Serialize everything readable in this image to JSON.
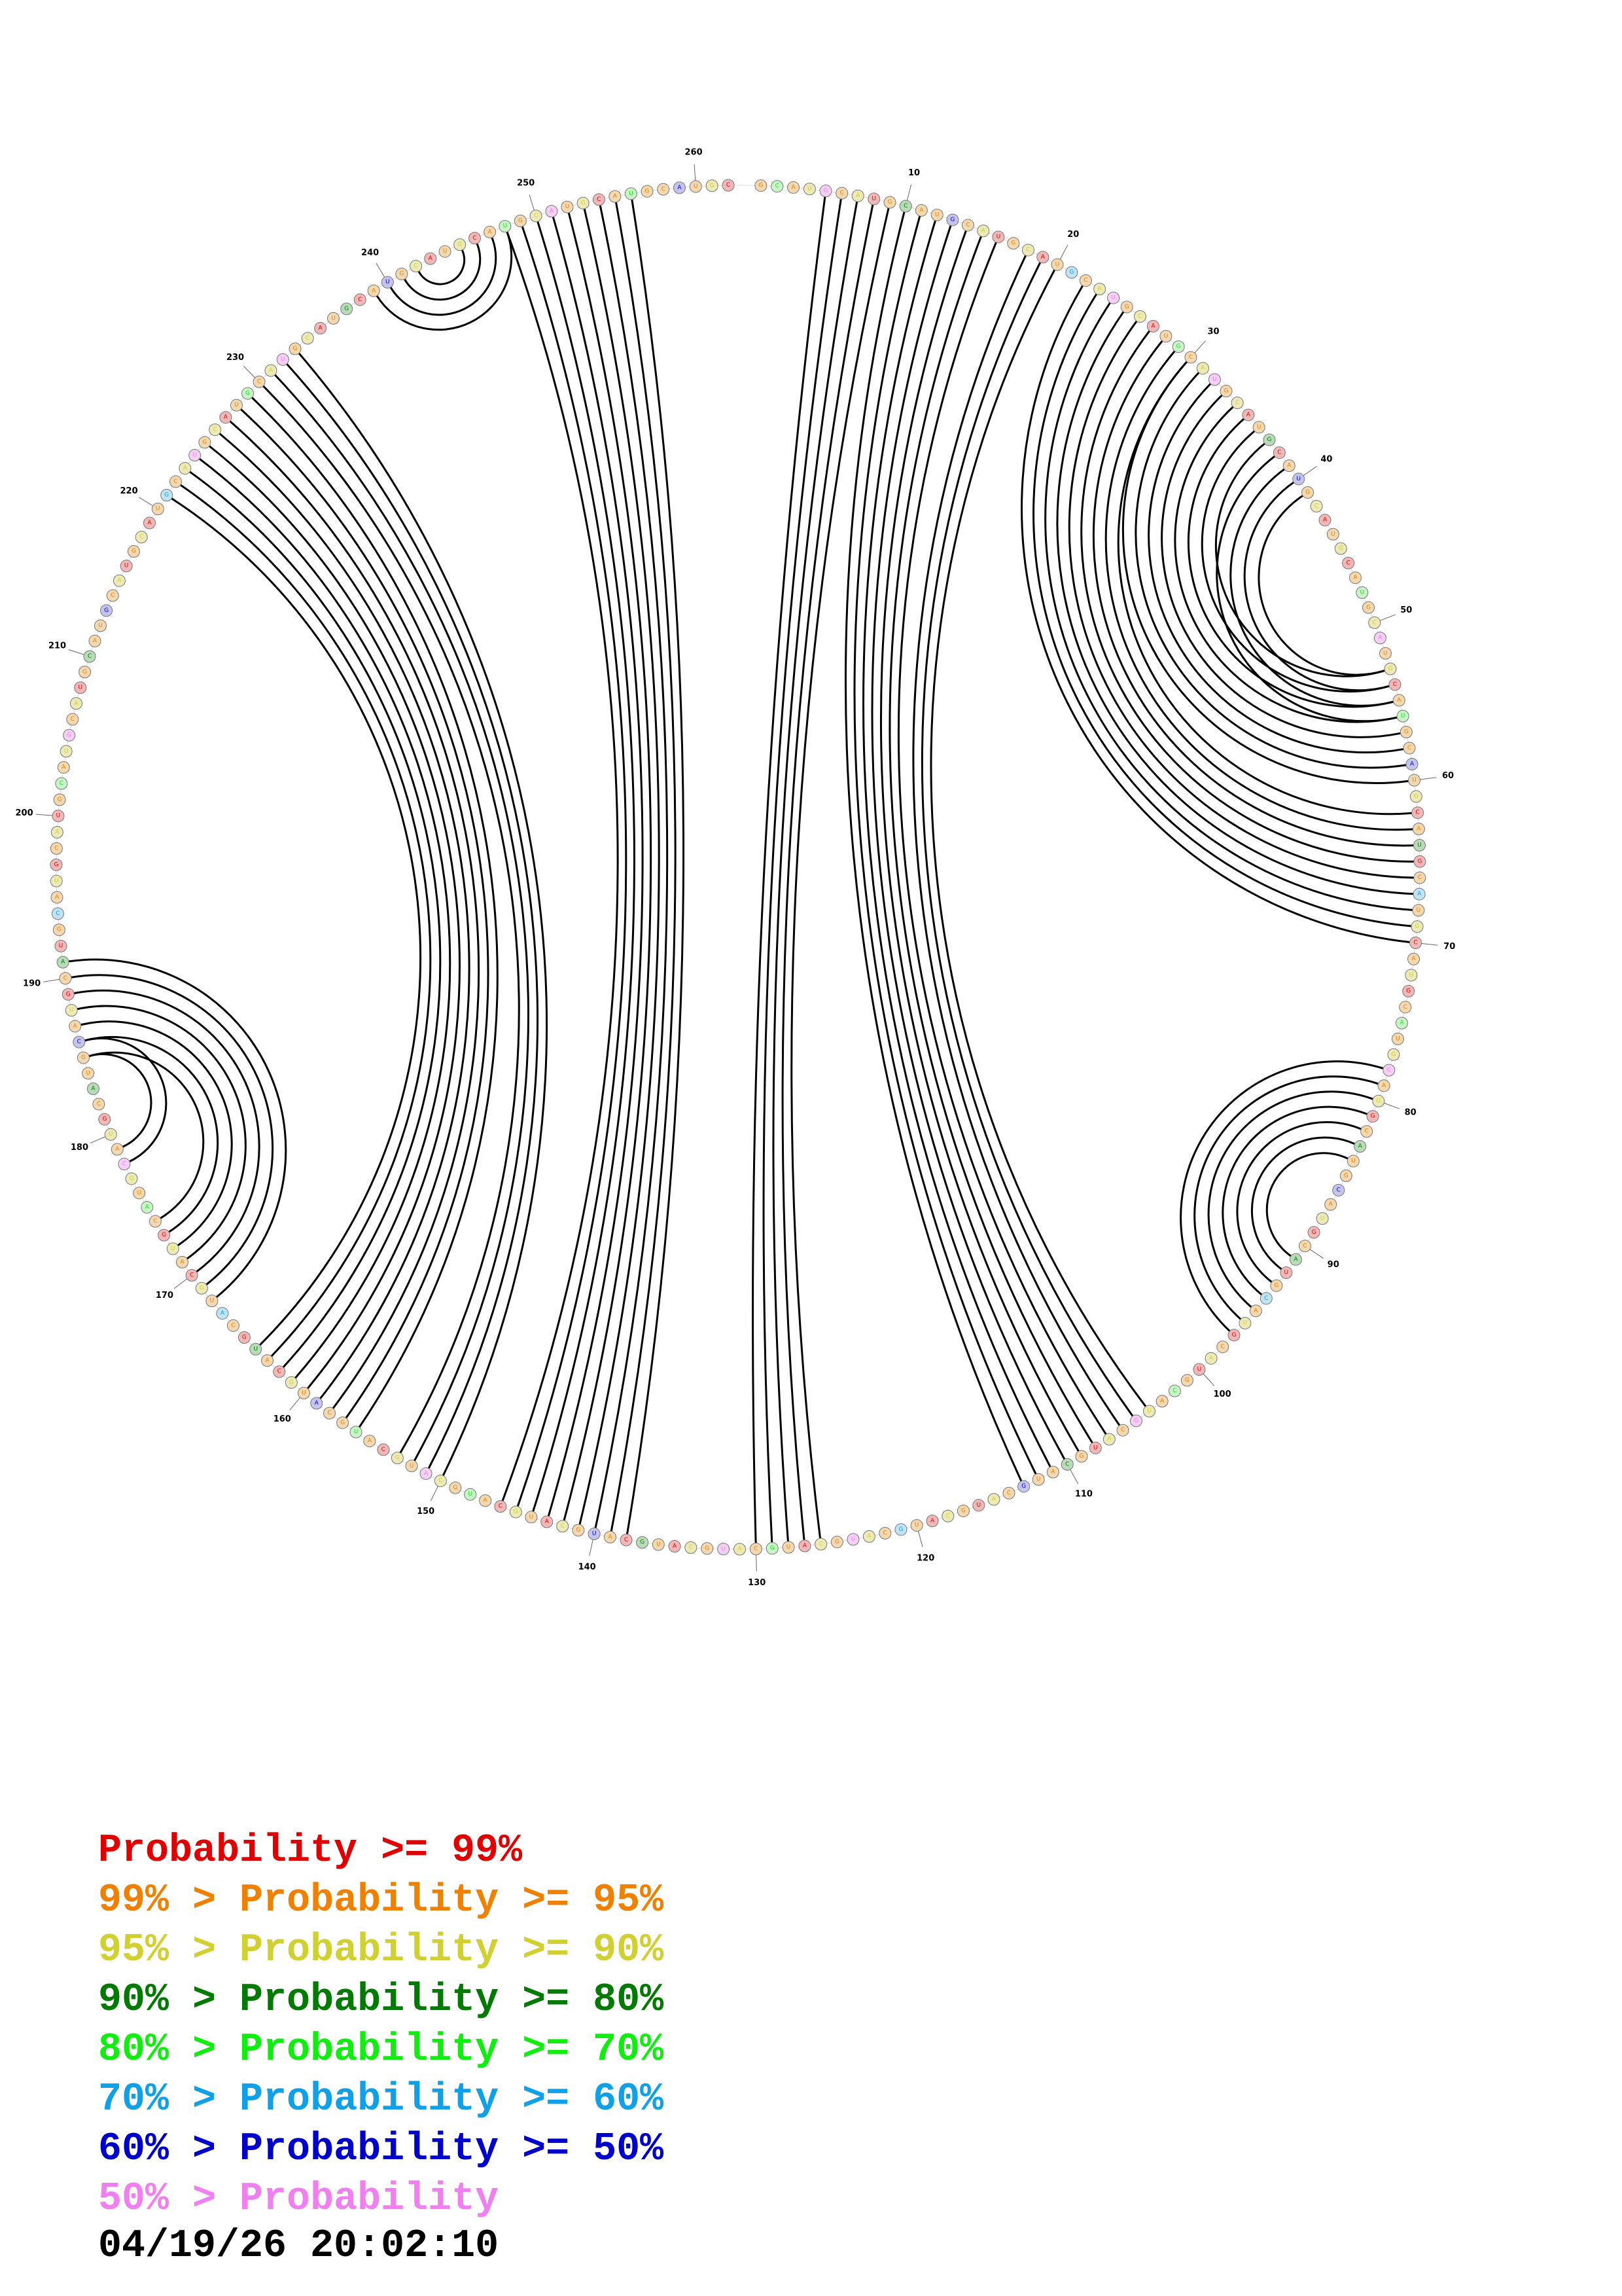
{
  "diagram": {
    "type": "rna-circle-plot",
    "num_bases": 262,
    "gap_between": [
      262,
      1
    ],
    "tick_every": 10,
    "pair_stems": [
      {
        "i": 5,
        "j": 130,
        "length": 5
      },
      {
        "i": 10,
        "j": 113,
        "length": 7
      },
      {
        "i": 18,
        "j": 106,
        "length": 3
      },
      {
        "i": 22,
        "j": 70,
        "length": 9
      },
      {
        "i": 30,
        "j": 60,
        "length": 8
      },
      {
        "i": 38,
        "j": 56,
        "length": 4
      },
      {
        "i": 78,
        "j": 97,
        "length": 7
      },
      {
        "i": 138,
        "j": 256,
        "length": 9
      },
      {
        "i": 150,
        "j": 233,
        "length": 4
      },
      {
        "i": 156,
        "j": 229,
        "length": 9
      },
      {
        "i": 168,
        "j": 191,
        "length": 7
      },
      {
        "i": 178,
        "j": 186,
        "length": 2
      },
      {
        "i": 239,
        "j": 248,
        "length": 4
      }
    ]
  },
  "colors": {
    "p99": "#e00000",
    "p95": "#f08000",
    "p90": "#d0d030",
    "p80": "#007a00",
    "p70": "#10ee10",
    "p60": "#10a0e8",
    "p50": "#0000cc",
    "plow": "#f080f0",
    "fill_p99": "#f2b8b8",
    "fill_p95": "#f3d8b0",
    "fill_p90": "#eceab6",
    "fill_p80": "#b8dcb8",
    "fill_p70": "#c8f4c8",
    "fill_p60": "#c0e4f6",
    "fill_p50": "#c4c4ee",
    "fill_plow": "#f4d0f4"
  },
  "legend": [
    {
      "prefix": "",
      "label": "Probability >= 99%",
      "color": "#e00000"
    },
    {
      "prefix": "99% > ",
      "label": "Probability >= 95%",
      "color": "#f08000"
    },
    {
      "prefix": "95% > ",
      "label": "Probability >= 90%",
      "color": "#d0d030"
    },
    {
      "prefix": "90% > ",
      "label": "Probability >= 80%",
      "color": "#007a00"
    },
    {
      "prefix": "80% > ",
      "label": "Probability >= 70%",
      "color": "#10ee10"
    },
    {
      "prefix": "70% > ",
      "label": "Probability >= 60%",
      "color": "#10a0e8"
    },
    {
      "prefix": "60% > ",
      "label": "Probability >= 50%",
      "color": "#0000cc"
    },
    {
      "prefix": "50% > ",
      "label": "Probability",
      "color": "#f080f0"
    }
  ],
  "timestamp": "04/19/26 20:02:10"
}
